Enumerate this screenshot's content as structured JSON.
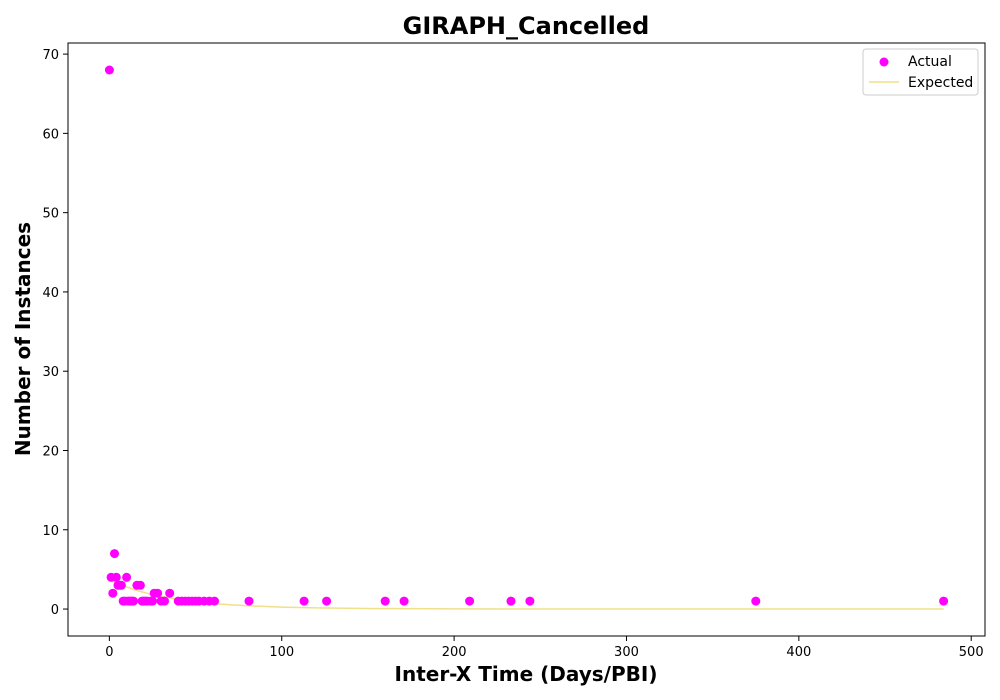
{
  "chart_data": {
    "type": "scatter",
    "title": "GIRAPH_Cancelled",
    "xlabel": "Inter-X Time (Days/PBI)",
    "ylabel": "Number of Instances",
    "xlim": [
      -24,
      508
    ],
    "ylim": [
      -3.4,
      71.4
    ],
    "xticks": [
      0,
      100,
      200,
      300,
      400,
      500
    ],
    "yticks": [
      0,
      10,
      20,
      30,
      40,
      50,
      60,
      70
    ],
    "grid": false,
    "legend_position": "top-right",
    "series": [
      {
        "name": "Actual",
        "kind": "scatter",
        "color": "#ff00ff",
        "points": [
          [
            0,
            68
          ],
          [
            1,
            4
          ],
          [
            2,
            2
          ],
          [
            3,
            7
          ],
          [
            4,
            4
          ],
          [
            5,
            3
          ],
          [
            6,
            3
          ],
          [
            7,
            3
          ],
          [
            8,
            1
          ],
          [
            9,
            1
          ],
          [
            10,
            4
          ],
          [
            11,
            1
          ],
          [
            12,
            1
          ],
          [
            13,
            1
          ],
          [
            14,
            1
          ],
          [
            16,
            3
          ],
          [
            18,
            3
          ],
          [
            19,
            1
          ],
          [
            20,
            1
          ],
          [
            21,
            1
          ],
          [
            22,
            1
          ],
          [
            24,
            1
          ],
          [
            25,
            1
          ],
          [
            26,
            2
          ],
          [
            28,
            2
          ],
          [
            30,
            1
          ],
          [
            32,
            1
          ],
          [
            35,
            2
          ],
          [
            40,
            1
          ],
          [
            42,
            1
          ],
          [
            44,
            1
          ],
          [
            46,
            1
          ],
          [
            48,
            1
          ],
          [
            50,
            1
          ],
          [
            52,
            1
          ],
          [
            55,
            1
          ],
          [
            58,
            1
          ],
          [
            61,
            1
          ],
          [
            81,
            1
          ],
          [
            113,
            1
          ],
          [
            126,
            1
          ],
          [
            160,
            1
          ],
          [
            171,
            1
          ],
          [
            209,
            1
          ],
          [
            233,
            1
          ],
          [
            244,
            1
          ],
          [
            375,
            1
          ],
          [
            484,
            1
          ]
        ]
      },
      {
        "name": "Expected",
        "kind": "line",
        "color": "#f0e08a",
        "x": [
          0,
          5,
          10,
          15,
          20,
          25,
          30,
          40,
          50,
          60,
          70,
          80,
          100,
          120,
          150,
          200,
          250,
          300,
          400,
          484
        ],
        "y": [
          3.6,
          3.2,
          2.8,
          2.4,
          2.1,
          1.8,
          1.6,
          1.2,
          0.9,
          0.7,
          0.55,
          0.42,
          0.25,
          0.15,
          0.07,
          0.02,
          0.005,
          0.001,
          0,
          0
        ]
      }
    ]
  }
}
